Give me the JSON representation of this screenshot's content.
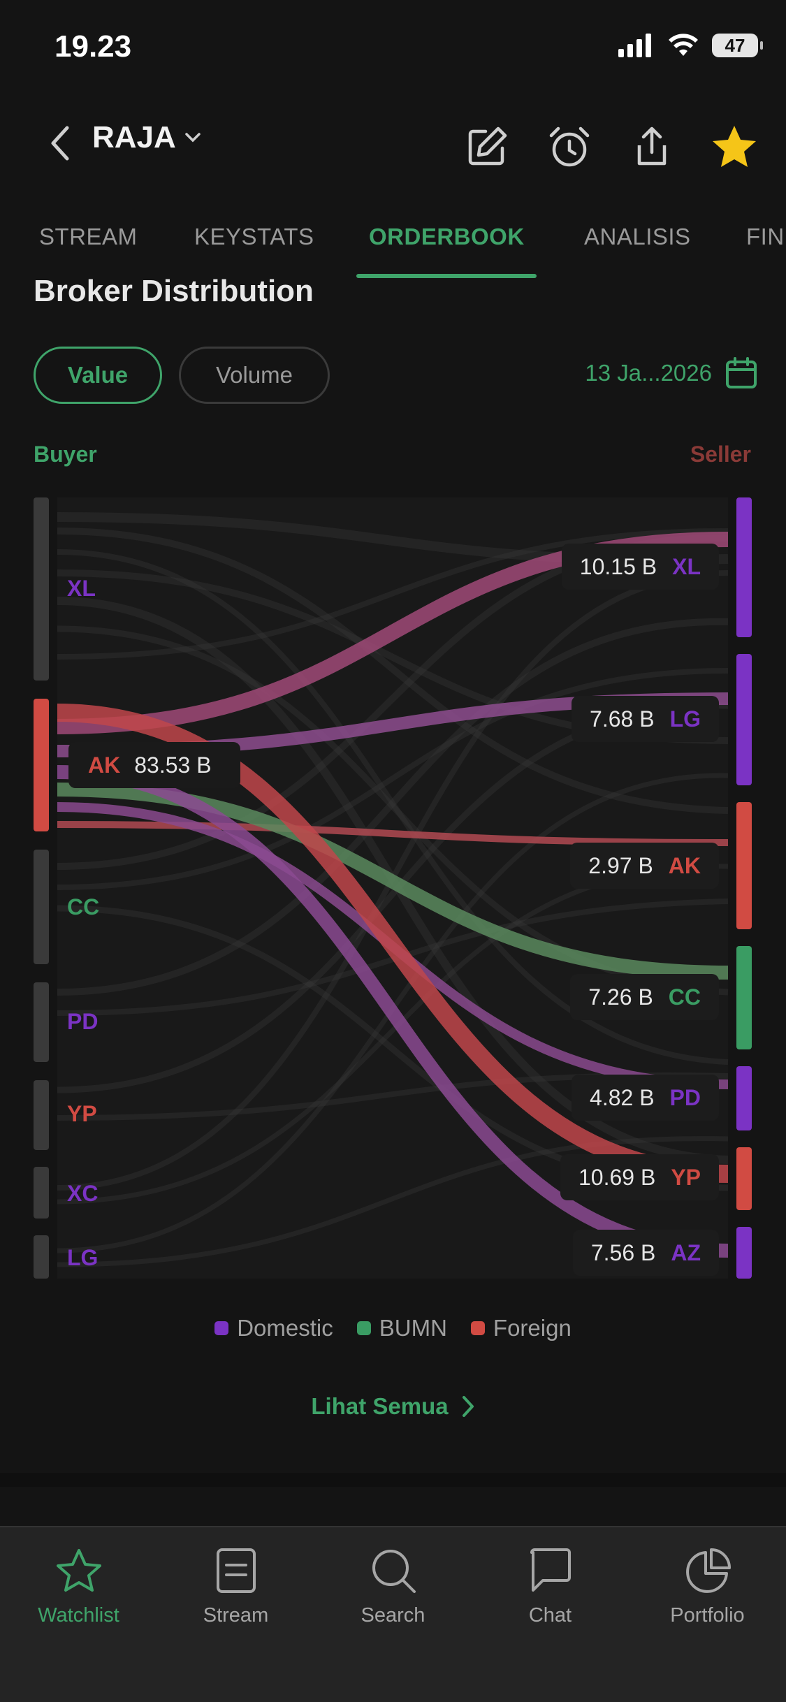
{
  "status_bar": {
    "time": "19.23",
    "battery": "47"
  },
  "header": {
    "ticker": "RAJA"
  },
  "tabs": [
    "STREAM",
    "KEYSTATS",
    "ORDERBOOK",
    "ANALISIS",
    "FIN"
  ],
  "active_tab": "ORDERBOOK",
  "section": {
    "title": "Broker Distribution",
    "toggle": {
      "value_label": "Value",
      "volume_label": "Volume",
      "selected": "Value"
    },
    "date": "13 Ja...2026"
  },
  "labels": {
    "buyer": "Buyer",
    "seller": "Seller"
  },
  "colors": {
    "domestic": "#7b33c4",
    "bumn": "#3a9c63",
    "foreign": "#d14b43",
    "accent": "#3fa46a"
  },
  "chart_data": {
    "type": "sankey",
    "buyers": [
      {
        "code": "XL",
        "category": "domestic"
      },
      {
        "code": "AK",
        "category": "foreign",
        "value": "83.53 B",
        "highlighted": true
      },
      {
        "code": "CC",
        "category": "bumn"
      },
      {
        "code": "PD",
        "category": "domestic"
      },
      {
        "code": "YP",
        "category": "foreign"
      },
      {
        "code": "XC",
        "category": "domestic"
      },
      {
        "code": "LG",
        "category": "domestic"
      }
    ],
    "sellers": [
      {
        "code": "XL",
        "category": "domestic",
        "value": "10.15 B"
      },
      {
        "code": "LG",
        "category": "domestic",
        "value": "7.68 B"
      },
      {
        "code": "AK",
        "category": "foreign",
        "value": "2.97 B"
      },
      {
        "code": "CC",
        "category": "bumn",
        "value": "7.26 B"
      },
      {
        "code": "PD",
        "category": "domestic",
        "value": "4.82 B"
      },
      {
        "code": "YP",
        "category": "foreign",
        "value": "10.69 B"
      },
      {
        "code": "AZ",
        "category": "domestic",
        "value": "7.56 B"
      }
    ]
  },
  "legend": [
    "Domestic",
    "BUMN",
    "Foreign"
  ],
  "see_all": "Lihat Semua",
  "nav": [
    "Watchlist",
    "Stream",
    "Search",
    "Chat",
    "Portfolio"
  ],
  "active_nav": "Watchlist"
}
